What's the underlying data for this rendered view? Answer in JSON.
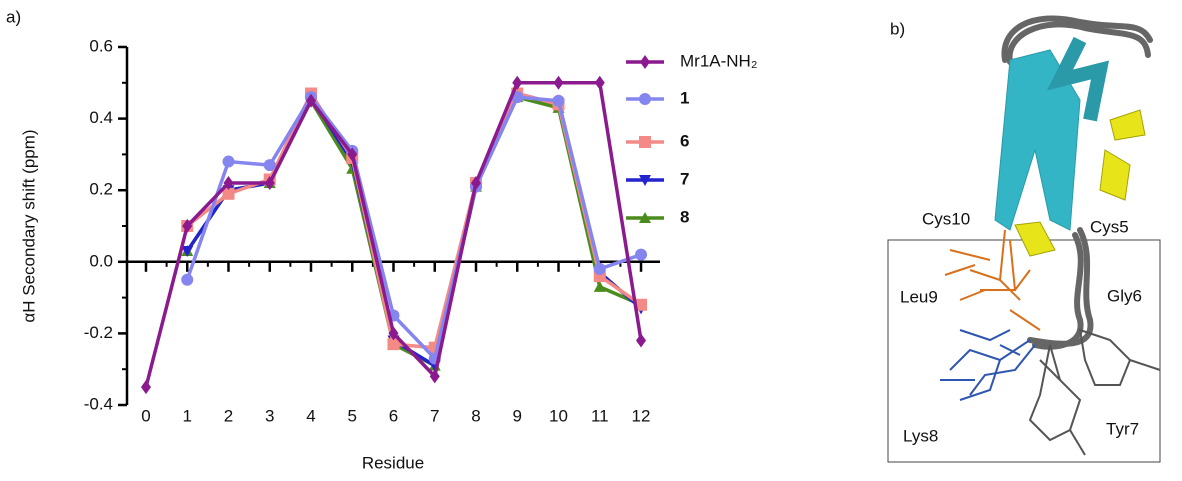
{
  "chart_data": {
    "type": "line",
    "panel_label": "a)",
    "y_label": "αH Secondary shift (ppm)",
    "x_label": "Residue",
    "x": [
      0,
      1,
      2,
      3,
      4,
      5,
      6,
      7,
      8,
      9,
      10,
      11,
      12
    ],
    "xlim": [
      -0.46,
      12.46
    ],
    "xticks": [
      0,
      1,
      2,
      3,
      4,
      5,
      6,
      7,
      8,
      9,
      10,
      11,
      12
    ],
    "ylim": [
      -0.4,
      0.6
    ],
    "yticks": [
      {
        "value": -0.4,
        "label": "-0.4"
      },
      {
        "value": -0.2,
        "label": "-0.2"
      },
      {
        "value": 0,
        "label": "0.0"
      },
      0.2,
      0.4,
      0.6
    ],
    "series": [
      {
        "name": "Mr1A-NH₂",
        "color": "#8b1a8f",
        "marker": "diamond",
        "values": [
          -0.35,
          0.1,
          0.22,
          0.22,
          0.45,
          0.3,
          -0.2,
          -0.32,
          0.22,
          0.5,
          0.5,
          0.5,
          -0.22
        ]
      },
      {
        "name": "1",
        "color": "#8585f0",
        "marker": "circle",
        "values": [
          null,
          -0.05,
          0.28,
          0.27,
          0.46,
          0.31,
          -0.15,
          -0.27,
          0.21,
          0.46,
          0.45,
          -0.02,
          0.02
        ]
      },
      {
        "name": "6",
        "color": "#f48a86",
        "marker": "square",
        "values": [
          null,
          0.1,
          0.19,
          0.23,
          0.47,
          0.29,
          -0.23,
          -0.24,
          0.22,
          0.47,
          0.44,
          -0.04,
          -0.12
        ]
      },
      {
        "name": "7",
        "color": "#2424cc",
        "marker": "triangle-down",
        "values": [
          null,
          0.03,
          0.2,
          0.22,
          0.46,
          0.28,
          -0.22,
          -0.29,
          0.21,
          0.47,
          0.44,
          -0.03,
          -0.13
        ]
      },
      {
        "name": "8",
        "color": "#4c8c1c",
        "marker": "triangle-up",
        "values": [
          null,
          0.03,
          0.2,
          0.22,
          0.45,
          0.26,
          -0.23,
          -0.29,
          0.21,
          0.46,
          0.43,
          -0.07,
          -0.12
        ]
      }
    ]
  },
  "structure": {
    "panel_label": "b)",
    "residues": [
      "Cys10",
      "Cys5",
      "Leu9",
      "Gly6",
      "Lys8",
      "Tyr7"
    ]
  }
}
